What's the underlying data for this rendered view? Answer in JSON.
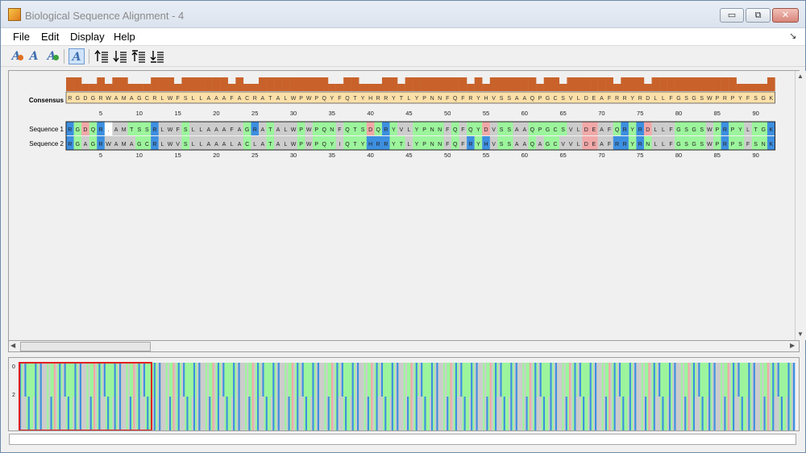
{
  "window": {
    "title": "Biological Sequence Alignment - 4",
    "buttons": {
      "minimize": "▭",
      "maximize": "⧉",
      "close": "✕"
    }
  },
  "menu": {
    "items": [
      {
        "label": "File"
      },
      {
        "label": "Edit"
      },
      {
        "label": "Display"
      },
      {
        "label": "Help"
      }
    ],
    "dock_glyph": "↘"
  },
  "toolbar": {
    "icons": [
      "font-decrease-icon",
      "font-icon",
      "font-increase-icon",
      "color-alignment-icon",
      "sort-ascending-icon",
      "sort-descending-icon",
      "sort-top-icon",
      "sort-bottom-icon"
    ]
  },
  "alignment": {
    "consensus_label": "Consensus",
    "row_labels": [
      "Sequence 1",
      "Sequence 2"
    ],
    "consensus": "RGDGRWAMAGCRLWFSLLAAAFACRATALWPWPQYFQTYHRRYTLYPNNFQFRYHVSSAAQPGCSVLDEAFRRYRDLLFGSGSWPRPYFSGK",
    "sequences": [
      "RGDQR.AMTSSRLWFSLLAAAFAGRATALWPWPQNFQTSDQRYVLYPNNFQFQYDVSSAAQPGCSVLDEAFQRYRDLLFGSGSWPRPYLTGK",
      "RGAGRWAMAGCRLWVSLLAAALACLATALWPWPQYIQTYHRRYTLYPNNFQFRYHVSSAAQAGCVVLDEAFRRYRNLLFGSGSWPRPSFSNK"
    ],
    "position_ticks": [
      "5",
      "10",
      "15",
      "20",
      "25",
      "30",
      "35",
      "40",
      "45",
      "50",
      "55",
      "60",
      "65",
      "70",
      "75",
      "80",
      "85",
      "90"
    ],
    "colors": {
      "consensus_bar": "#c8622a",
      "consensus_bg": "#fde0a8",
      "hydrophobic": "#cccccc",
      "polar": "#9cf59c",
      "positive": "#3d8fe0",
      "negative": "#f1a8a8",
      "gap": "#ffffff",
      "viewport": "#e02020"
    }
  },
  "overview": {
    "y_ticks": [
      "0",
      "2"
    ]
  },
  "status_text": ""
}
